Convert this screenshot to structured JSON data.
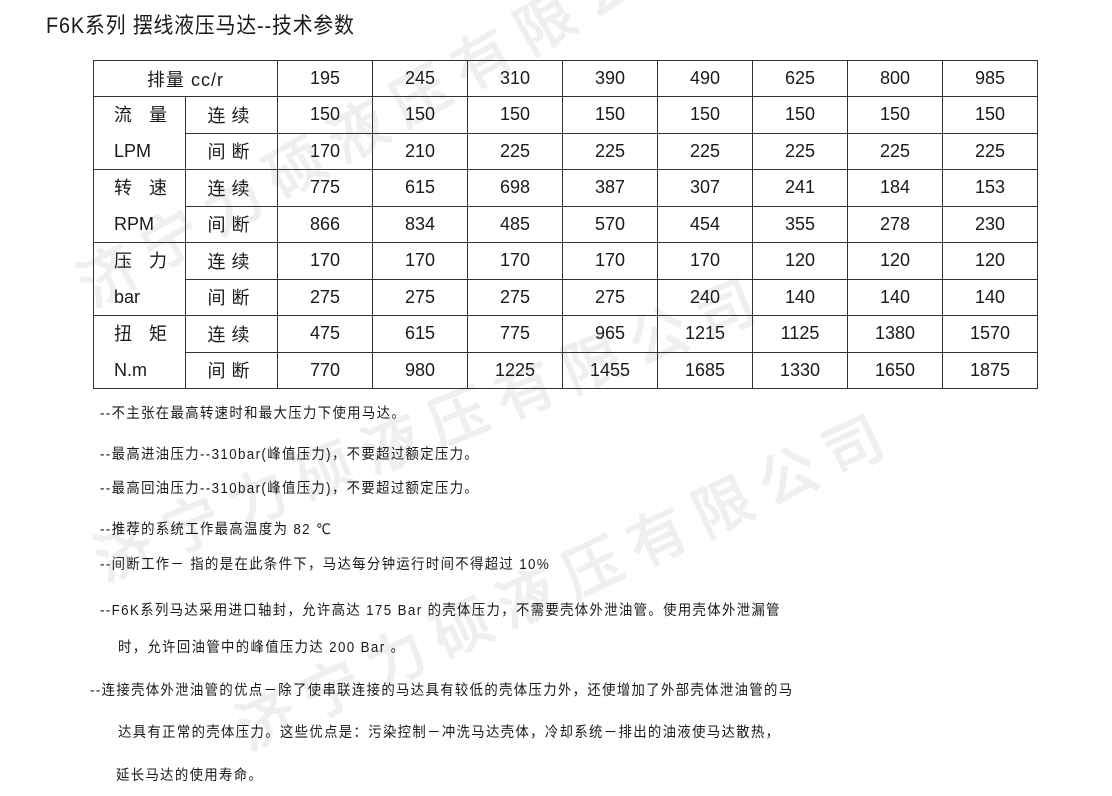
{
  "title": "F6K系列 摆线液压马达--技术参数",
  "watermark": "济宁力硕液压有限公司",
  "table": {
    "header_label": "排量 cc/r",
    "displacements": [
      "195",
      "245",
      "310",
      "390",
      "490",
      "625",
      "800",
      "985"
    ],
    "groups": [
      {
        "label": "流 量",
        "unit": "LPM",
        "rows": [
          {
            "type": "连续",
            "values": [
              "150",
              "150",
              "150",
              "150",
              "150",
              "150",
              "150",
              "150"
            ]
          },
          {
            "type": "间断",
            "values": [
              "170",
              "210",
              "225",
              "225",
              "225",
              "225",
              "225",
              "225"
            ]
          }
        ]
      },
      {
        "label": "转 速",
        "unit": "RPM",
        "rows": [
          {
            "type": "连续",
            "values": [
              "775",
              "615",
              "698",
              "387",
              "307",
              "241",
              "184",
              "153"
            ]
          },
          {
            "type": "间断",
            "values": [
              "866",
              "834",
              "485",
              "570",
              "454",
              "355",
              "278",
              "230"
            ]
          }
        ]
      },
      {
        "label": "压 力",
        "unit": "bar",
        "rows": [
          {
            "type": "连续",
            "values": [
              "170",
              "170",
              "170",
              "170",
              "170",
              "120",
              "120",
              "120"
            ]
          },
          {
            "type": "间断",
            "values": [
              "275",
              "275",
              "275",
              "275",
              "240",
              "140",
              "140",
              "140"
            ]
          }
        ]
      },
      {
        "label": "扭 矩",
        "unit": "N.m",
        "rows": [
          {
            "type": "连续",
            "values": [
              "475",
              "615",
              "775",
              "965",
              "1215",
              "1125",
              "1380",
              "1570"
            ]
          },
          {
            "type": "间断",
            "values": [
              "770",
              "980",
              "1225",
              "1455",
              "1685",
              "1330",
              "1650",
              "1875"
            ]
          }
        ]
      }
    ]
  },
  "notes": [
    "--不主张在最高转速时和最大压力下使用马达。",
    "--最高进油压力--310bar(峰值压力)，不要超过额定压力。",
    "--最高回油压力--310bar(峰值压力)，不要超过额定压力。",
    "--推荐的系统工作最高温度为 82 ℃",
    "--间断工作－ 指的是在此条件下，马达每分钟运行时间不得超过 10%",
    "--F6K系列马达采用进口轴封，允许高达 175 Bar 的壳体压力，不需要壳体外泄油管。使用壳体外泄漏管",
    "时，允许回油管中的峰值压力达 200 Bar 。",
    "--连接壳体外泄油管的优点－除了使串联连接的马达具有较低的壳体压力外，还使增加了外部壳体泄油管的马",
    "达具有正常的壳体压力。这些优点是：污染控制－冲洗马达壳体，冷却系统－排出的油液使马达散热，",
    "延长马达的使用寿命。"
  ]
}
